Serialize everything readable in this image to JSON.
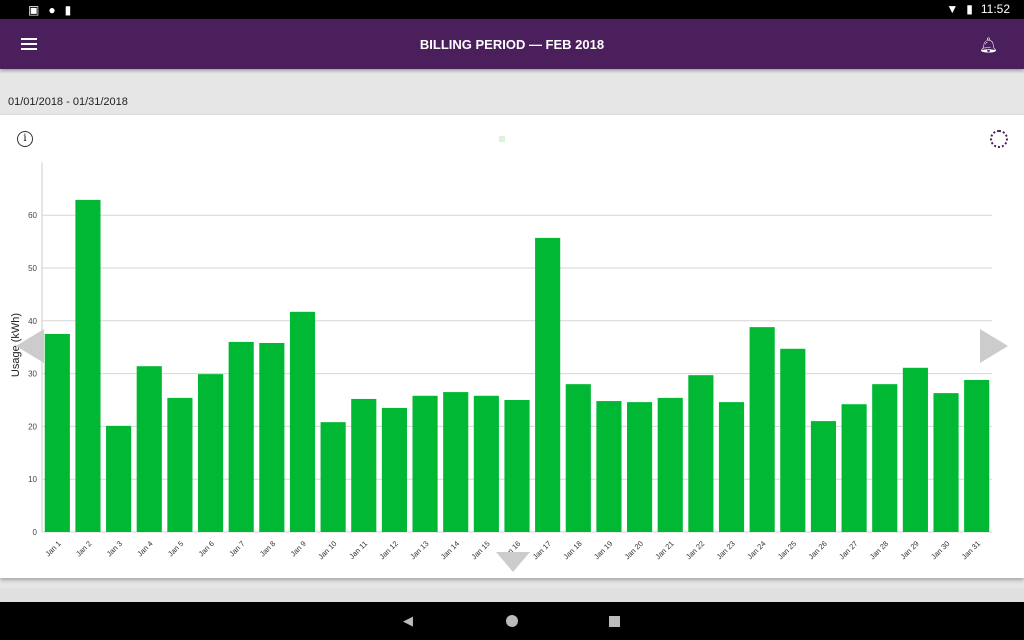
{
  "status": {
    "time": "11:52"
  },
  "appbar": {
    "title": "BILLING PERIOD  —  FEB 2018",
    "menu_icon": "hamburger-icon",
    "bell_icon": "bell-icon"
  },
  "range": "01/01/2018 - 01/31/2018",
  "colors": {
    "appbar": "#4b1f5b",
    "bar": "#00b833"
  },
  "chart_data": {
    "type": "bar",
    "ylabel": "Usage (kWh)",
    "xlabel": "",
    "ylim": [
      0,
      70
    ],
    "yticks": [
      0,
      10,
      20,
      30,
      40,
      50,
      60
    ],
    "grid": true,
    "categories": [
      "Jan 1",
      "Jan 2",
      "Jan 3",
      "Jan 4",
      "Jan 5",
      "Jan 6",
      "Jan 7",
      "Jan 8",
      "Jan 9",
      "Jan 10",
      "Jan 11",
      "Jan 12",
      "Jan 13",
      "Jan 14",
      "Jan 15",
      "Jan 16",
      "Jan 17",
      "Jan 18",
      "Jan 19",
      "Jan 20",
      "Jan 21",
      "Jan 22",
      "Jan 23",
      "Jan 24",
      "Jan 25",
      "Jan 26",
      "Jan 27",
      "Jan 28",
      "Jan 29",
      "Jan 30",
      "Jan 31"
    ],
    "values": [
      37.5,
      62.9,
      20.1,
      31.4,
      25.4,
      29.9,
      36.0,
      35.8,
      41.7,
      20.8,
      25.2,
      23.5,
      25.8,
      26.5,
      25.8,
      25.0,
      55.7,
      28.0,
      24.8,
      24.6,
      25.4,
      29.7,
      24.6,
      38.8,
      34.7,
      21.0,
      24.2,
      28.0,
      31.1,
      26.3,
      28.8
    ]
  }
}
